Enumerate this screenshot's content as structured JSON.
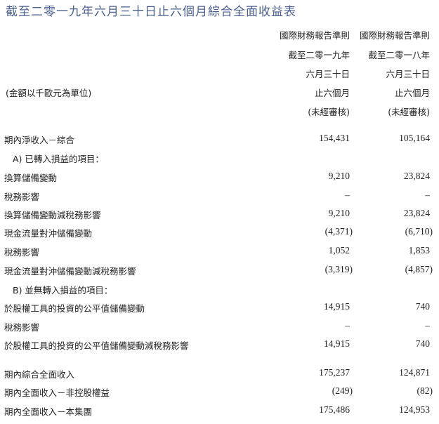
{
  "title": "截至二零一九年六月三十日止六個月綜合全面收益表",
  "unit": "(金額以千歐元為單位)",
  "columns": [
    {
      "lines": [
        "國際財務報告準則",
        "截至二零一九年",
        "六月三十日",
        "止六個月",
        "(未經審核)"
      ]
    },
    {
      "lines": [
        "國際財務報告準則",
        "截至二零一八年",
        "六月三十日",
        "止六個月",
        "(未經審核)"
      ]
    }
  ],
  "rows": [
    {
      "label": "期內淨收入－綜合",
      "v1": "154,431",
      "v2": "105,164"
    },
    {
      "label": "A) 已轉入損益的項目：",
      "v1": "",
      "v2": ""
    },
    {
      "label": "換算儲備變動",
      "v1": "9,210",
      "v2": "23,824"
    },
    {
      "label": "稅務影響",
      "v1": "–",
      "v2": "–"
    },
    {
      "label": "換算儲備變動減稅務影響",
      "v1": "9,210",
      "v2": "23,824"
    },
    {
      "label": "現金流量對沖儲備變動",
      "v1": "(4,371)",
      "v2": "(6,710)"
    },
    {
      "label": "稅務影響",
      "v1": "1,052",
      "v2": "1,853"
    },
    {
      "label": "現金流量對沖儲備變動減稅務影響",
      "v1": "(3,319)",
      "v2": "(4,857)"
    },
    {
      "label": "B) 並無轉入損益的項目：",
      "v1": "",
      "v2": ""
    },
    {
      "label": "於股權工具的投資的公平值儲備變動",
      "v1": "14,915",
      "v2": "740"
    },
    {
      "label": "稅務影響",
      "v1": "–",
      "v2": "–"
    },
    {
      "label": "於股權工具的投資的公平值儲備變動減稅務影響",
      "v1": "14,915",
      "v2": "740"
    },
    {
      "label": "期內綜合全面收入",
      "v1": "175,237",
      "v2": "124,871"
    },
    {
      "label": "期內全面收入－非控股權益",
      "v1": "(249)",
      "v2": "(82)"
    },
    {
      "label": "期內全面收入－本集團",
      "v1": "175,486",
      "v2": "124,953"
    }
  ]
}
